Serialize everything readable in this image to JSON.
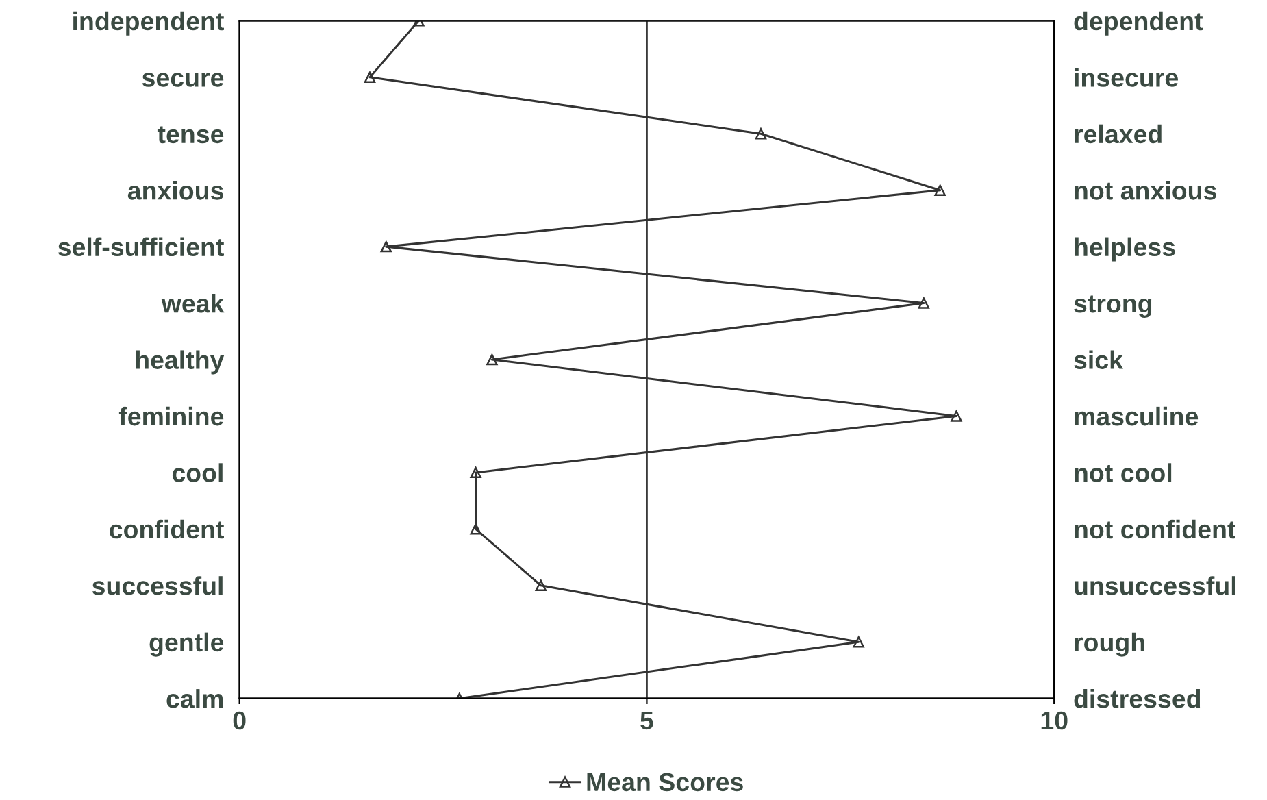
{
  "chart_data": {
    "type": "line",
    "orientation": "horizontal",
    "categories": [
      "independent",
      "secure",
      "tense",
      "anxious",
      "self-sufficient",
      "weak",
      "healthy",
      "feminine",
      "cool",
      "confident",
      "successful",
      "gentle",
      "calm"
    ],
    "y2_categories": [
      "dependent",
      "insecure",
      "relaxed",
      "not anxious",
      "helpless",
      "strong",
      "sick",
      "masculine",
      "not cool",
      "not confident",
      "unsuccessful",
      "rough",
      "distressed"
    ],
    "series": [
      {
        "name": "Mean Scores",
        "color": "#333333",
        "values": [
          2.2,
          1.6,
          6.4,
          8.6,
          1.8,
          8.4,
          3.1,
          8.8,
          2.9,
          2.9,
          3.7,
          7.6,
          2.7
        ]
      }
    ],
    "xlim": [
      0,
      10
    ],
    "xticks": [
      0,
      5,
      10
    ],
    "ref_lines": [
      {
        "axis": "x",
        "value": 5,
        "color": "#333333"
      }
    ],
    "marker": "triangle",
    "line_style": "solid",
    "grid": false,
    "legend": "bottom"
  }
}
